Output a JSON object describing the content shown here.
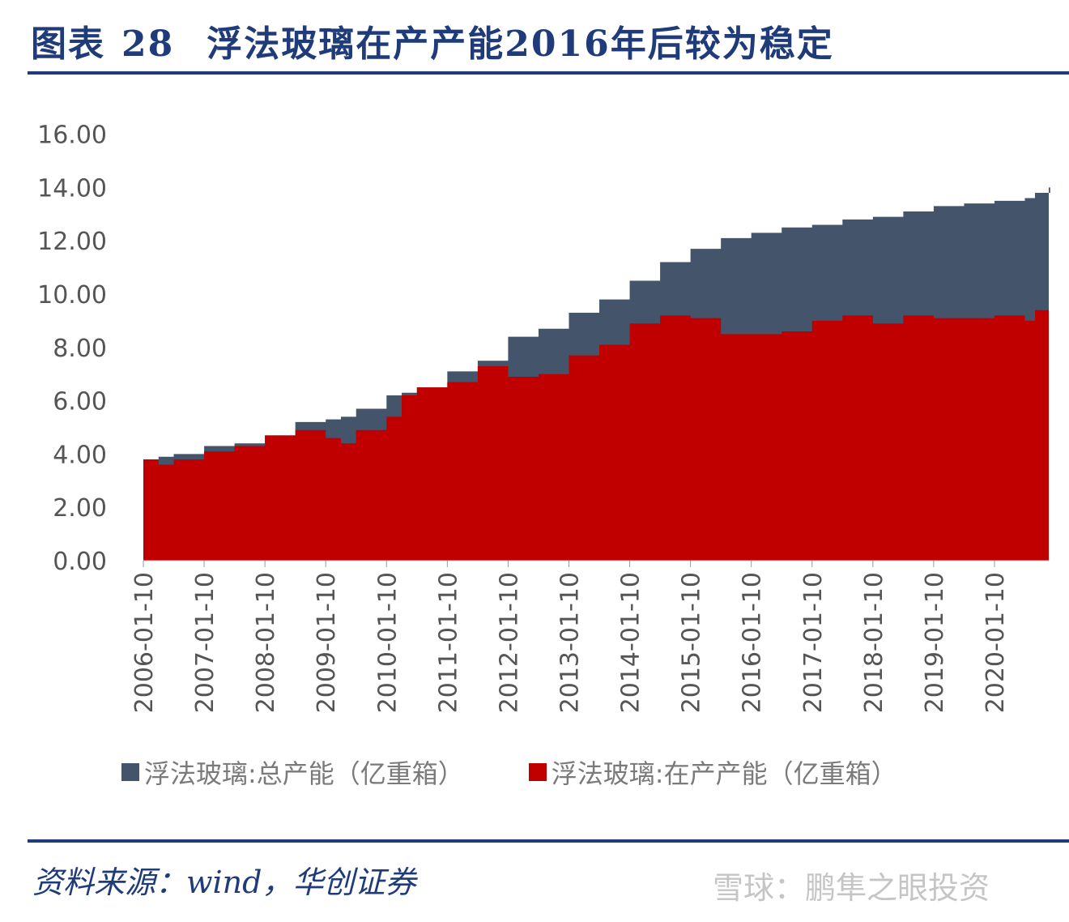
{
  "header": {
    "label": "图表",
    "number": "28",
    "title": "浮法玻璃在产产能2016年后较为稳定"
  },
  "source": "资料来源：wind，华创证券",
  "watermark": "雪球：鹏隼之眼投资",
  "chart_data": {
    "type": "area",
    "title": "浮法玻璃在产产能2016年后较为稳定",
    "xlabel": "",
    "ylabel": "",
    "ylim": [
      0,
      16
    ],
    "yticks": [
      "0.00",
      "2.00",
      "4.00",
      "6.00",
      "8.00",
      "10.00",
      "12.00",
      "14.00",
      "16.00"
    ],
    "xticks": [
      "2006-01-10",
      "2007-01-10",
      "2008-01-10",
      "2009-01-10",
      "2010-01-10",
      "2011-01-10",
      "2012-01-10",
      "2013-01-10",
      "2014-01-10",
      "2015-01-10",
      "2016-01-10",
      "2017-01-10",
      "2018-01-10",
      "2019-01-10",
      "2020-01-10"
    ],
    "legend_position": "bottom",
    "grid": false,
    "x": [
      "2006-01",
      "2006-04",
      "2006-07",
      "2007-01",
      "2007-07",
      "2008-01",
      "2008-07",
      "2009-01",
      "2009-04",
      "2009-07",
      "2010-01",
      "2010-04",
      "2010-07",
      "2011-01",
      "2011-07",
      "2012-01",
      "2012-07",
      "2013-01",
      "2013-07",
      "2014-01",
      "2014-07",
      "2015-01",
      "2015-07",
      "2016-01",
      "2016-07",
      "2017-01",
      "2017-07",
      "2018-01",
      "2018-07",
      "2019-01",
      "2019-07",
      "2020-01",
      "2020-07",
      "2020-09",
      "2020-12"
    ],
    "series": [
      {
        "name": "浮法玻璃:总产能（亿重箱）",
        "color": "#44546a",
        "values": [
          3.8,
          3.9,
          4.0,
          4.3,
          4.4,
          4.7,
          5.2,
          5.3,
          5.4,
          5.7,
          6.2,
          6.3,
          6.5,
          7.1,
          7.5,
          8.4,
          8.7,
          9.3,
          9.8,
          10.5,
          11.2,
          11.7,
          12.1,
          12.3,
          12.5,
          12.6,
          12.8,
          12.9,
          13.1,
          13.3,
          13.4,
          13.5,
          13.6,
          13.8,
          14.0
        ]
      },
      {
        "name": "浮法玻璃:在产产能（亿重箱）",
        "color": "#c00000",
        "values": [
          3.8,
          3.6,
          3.8,
          4.1,
          4.3,
          4.7,
          4.9,
          4.6,
          4.4,
          4.9,
          5.4,
          6.2,
          6.5,
          6.7,
          7.3,
          6.9,
          7.0,
          7.7,
          8.1,
          8.9,
          9.2,
          9.1,
          8.5,
          8.5,
          8.6,
          9.0,
          9.2,
          8.9,
          9.2,
          9.1,
          9.1,
          9.2,
          9.0,
          9.4,
          9.4
        ]
      }
    ]
  }
}
